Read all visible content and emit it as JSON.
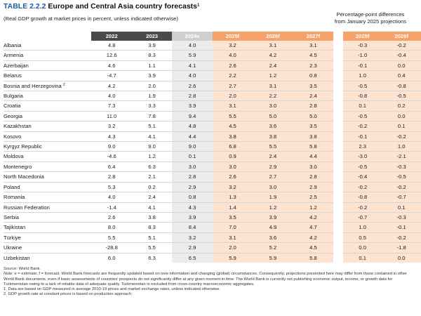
{
  "title": {
    "number": "TABLE 2.2.2",
    "name": "Europe and Central Asia country forecasts",
    "footnote_ref": "1"
  },
  "subtitle": "(Real GDP growth at market prices in percent, unless indicated otherwise)",
  "pp_header": {
    "line1": "Percentage-point differences",
    "line2": "from January 2025 projections"
  },
  "columns": {
    "main": [
      "2022",
      "2023",
      "2024e",
      "2025f",
      "2026f",
      "2027f"
    ],
    "diff": [
      "2025f",
      "2026f"
    ]
  },
  "rows": [
    {
      "country": "Albania",
      "fn": "",
      "values": [
        "4.8",
        "3.9",
        "4.0",
        "3.2",
        "3.1",
        "3.1"
      ],
      "diff": [
        "-0.3",
        "-0.2"
      ]
    },
    {
      "country": "Armenia",
      "fn": "",
      "values": [
        "12.6",
        "8.3",
        "5.9",
        "4.0",
        "4.2",
        "4.5"
      ],
      "diff": [
        "-1.0",
        "-0.4"
      ]
    },
    {
      "country": "Azerbaijan",
      "fn": "",
      "values": [
        "4.6",
        "1.1",
        "4.1",
        "2.6",
        "2.4",
        "2.3"
      ],
      "diff": [
        "-0.1",
        "0.0"
      ]
    },
    {
      "country": "Belarus",
      "fn": "",
      "values": [
        "-4.7",
        "3.9",
        "4.0",
        "2.2",
        "1.2",
        "0.8"
      ],
      "diff": [
        "1.0",
        "0.4"
      ]
    },
    {
      "country": "Bosnia and Herzegovina",
      "fn": "2",
      "values": [
        "4.2",
        "2.0",
        "2.6",
        "2.7",
        "3.1",
        "3.5"
      ],
      "diff": [
        "-0.5",
        "-0.8"
      ]
    },
    {
      "country": "Bulgaria",
      "fn": "",
      "values": [
        "4.0",
        "1.9",
        "2.8",
        "2.0",
        "2.2",
        "2.4"
      ],
      "diff": [
        "-0.8",
        "-0.5"
      ]
    },
    {
      "country": "Croatia",
      "fn": "",
      "values": [
        "7.3",
        "3.3",
        "3.9",
        "3.1",
        "3.0",
        "2.8"
      ],
      "diff": [
        "0.1",
        "0.2"
      ]
    },
    {
      "country": "Georgia",
      "fn": "",
      "values": [
        "11.0",
        "7.8",
        "9.4",
        "5.5",
        "5.0",
        "5.0"
      ],
      "diff": [
        "-0.5",
        "0.0"
      ]
    },
    {
      "country": "Kazakhstan",
      "fn": "",
      "values": [
        "3.2",
        "5.1",
        "4.8",
        "4.5",
        "3.6",
        "3.5"
      ],
      "diff": [
        "-0.2",
        "0.1"
      ]
    },
    {
      "country": "Kosovo",
      "fn": "",
      "values": [
        "4.3",
        "4.1",
        "4.4",
        "3.8",
        "3.8",
        "3.8"
      ],
      "diff": [
        "-0.1",
        "-0.2"
      ]
    },
    {
      "country": "Kyrgyz Republic",
      "fn": "",
      "values": [
        "9.0",
        "9.0",
        "9.0",
        "6.8",
        "5.5",
        "5.8"
      ],
      "diff": [
        "2.3",
        "1.0"
      ]
    },
    {
      "country": "Moldova",
      "fn": "",
      "values": [
        "-4.6",
        "1.2",
        "0.1",
        "0.9",
        "2.4",
        "4.4"
      ],
      "diff": [
        "-3.0",
        "-2.1"
      ]
    },
    {
      "country": "Montenegro",
      "fn": "",
      "values": [
        "6.4",
        "6.3",
        "3.0",
        "3.0",
        "2.9",
        "3.0"
      ],
      "diff": [
        "-0.5",
        "-0.3"
      ]
    },
    {
      "country": "North Macedonia",
      "fn": "",
      "values": [
        "2.8",
        "2.1",
        "2.8",
        "2.6",
        "2.7",
        "2.8"
      ],
      "diff": [
        "-0.4",
        "-0.5"
      ]
    },
    {
      "country": "Poland",
      "fn": "",
      "values": [
        "5.3",
        "0.2",
        "2.9",
        "3.2",
        "3.0",
        "2.9"
      ],
      "diff": [
        "-0.2",
        "-0.2"
      ]
    },
    {
      "country": "Romania",
      "fn": "",
      "values": [
        "4.0",
        "2.4",
        "0.8",
        "1.3",
        "1.9",
        "2.5"
      ],
      "diff": [
        "-0.8",
        "-0.7"
      ]
    },
    {
      "country": "Russian Federation",
      "fn": "",
      "values": [
        "-1.4",
        "4.1",
        "4.3",
        "1.4",
        "1.2",
        "1.2"
      ],
      "diff": [
        "-0.2",
        "0.1"
      ]
    },
    {
      "country": "Serbia",
      "fn": "",
      "values": [
        "2.6",
        "3.8",
        "3.9",
        "3.5",
        "3.9",
        "4.2"
      ],
      "diff": [
        "-0.7",
        "-0.3"
      ]
    },
    {
      "country": "Tajikistan",
      "fn": "",
      "values": [
        "8.0",
        "8.3",
        "8.4",
        "7.0",
        "4.9",
        "4.7"
      ],
      "diff": [
        "1.0",
        "-0.1"
      ]
    },
    {
      "country": "Türkiye",
      "fn": "",
      "values": [
        "5.5",
        "5.1",
        "3.2",
        "3.1",
        "3.6",
        "4.2"
      ],
      "diff": [
        "0.5",
        "-0.2"
      ]
    },
    {
      "country": "Ukraine",
      "fn": "",
      "values": [
        "-28.8",
        "5.5",
        "2.9",
        "2.0",
        "5.2",
        "4.5"
      ],
      "diff": [
        "0.0",
        "-1.8"
      ]
    },
    {
      "country": "Uzbekistan",
      "fn": "",
      "values": [
        "6.0",
        "6.3",
        "6.5",
        "5.9",
        "5.9",
        "5.8"
      ],
      "diff": [
        "0.1",
        "0.0"
      ]
    }
  ],
  "notes": {
    "source": "Source: World Bank.",
    "note_label": "Note:",
    "note_text": " e = estimate; f = forecast. World Bank forecasts are frequently updated based on new information and changing (global) circumstances. Consequently, projections presented here may differ from those contained in other World Bank documents, even if basic assessments of countries' prospects do not significantly differ at any given moment in time. The World Bank is currently not publishing economic output, income, or growth data for Turkmenistan owing to a lack of reliable data of adequate quality. Turkmenistan is excluded from cross-country macroeconomic aggregates.",
    "fn1": "1. Data are based on GDP measured in average 2010-19 prices and market exchange rates, unless indicated otherwise.",
    "fn2": "2. GDP growth rate at constant prices is based on production approach."
  },
  "colors": {
    "title_number": "#1f5fa8",
    "header_historical": "#4a4a4a",
    "header_estimate": "#cfcfcf",
    "header_forecast": "#f6a26a",
    "cell_estimate": "#ececec",
    "cell_forecast": "#fde3d0"
  }
}
